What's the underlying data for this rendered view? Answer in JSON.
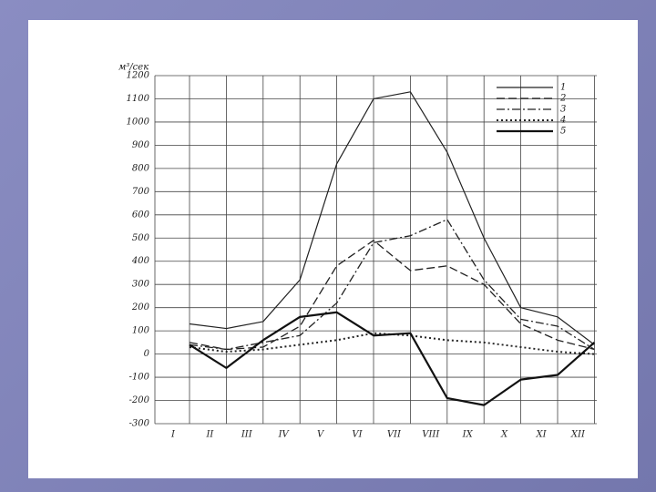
{
  "chart_data": {
    "type": "line",
    "y_label": "м³/сек",
    "categories": [
      "I",
      "II",
      "III",
      "IV",
      "V",
      "VI",
      "VII",
      "VIII",
      "IX",
      "X",
      "XI",
      "XII"
    ],
    "ylim": [
      -300,
      1200
    ],
    "yticks": [
      -300,
      -200,
      -100,
      0,
      100,
      200,
      300,
      400,
      500,
      600,
      700,
      800,
      900,
      1000,
      1100,
      1200
    ],
    "grid": true,
    "legend": "top-right",
    "series": [
      {
        "name": "1",
        "color": "#222222",
        "style": "solid",
        "values": [
          130,
          110,
          140,
          320,
          820,
          1100,
          1130,
          870,
          500,
          200,
          160,
          40
        ]
      },
      {
        "name": "2",
        "color": "#222222",
        "style": "dashed",
        "values": [
          50,
          20,
          30,
          120,
          380,
          490,
          360,
          380,
          300,
          130,
          60,
          20
        ]
      },
      {
        "name": "3",
        "color": "#222222",
        "style": "dash-dot",
        "values": [
          40,
          20,
          50,
          80,
          220,
          480,
          510,
          580,
          320,
          150,
          120,
          20
        ]
      },
      {
        "name": "4",
        "color": "#222222",
        "style": "dotted",
        "values": [
          30,
          10,
          20,
          40,
          60,
          90,
          80,
          60,
          50,
          30,
          10,
          0
        ]
      },
      {
        "name": "5",
        "color": "#111111",
        "style": "thick",
        "values": [
          40,
          -60,
          60,
          160,
          180,
          80,
          90,
          -190,
          -220,
          -110,
          -90,
          50
        ]
      }
    ]
  }
}
